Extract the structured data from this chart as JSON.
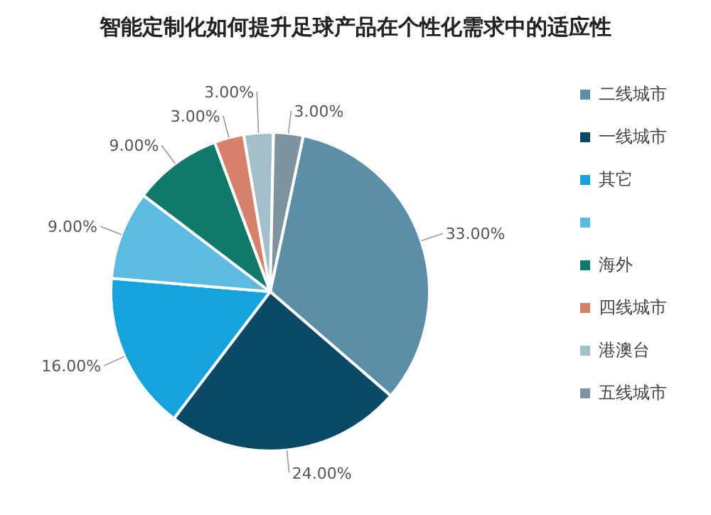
{
  "chart_data": {
    "type": "pie",
    "title": "智能定制化如何提升足球产品在个性化需求中的适应性",
    "categories": [
      "二线城市",
      "一线城市",
      "其它",
      null,
      "海外",
      "四线城市",
      "港澳台",
      "五线城市"
    ],
    "values": [
      33,
      24,
      16,
      9,
      9,
      3,
      3,
      3
    ],
    "colors": [
      "#5b8fa8",
      "#0b4a66",
      "#14a3dc",
      "#5bbbe0",
      "#0f7a6a",
      "#d9806a",
      "#a3bfcc",
      "#7d939e"
    ],
    "value_labels": [
      "33.00%",
      "24.00%",
      "16.00%",
      "9.00%",
      "9.00%",
      "3.00%",
      "3.00%",
      "3.00%"
    ],
    "legend": "right"
  }
}
